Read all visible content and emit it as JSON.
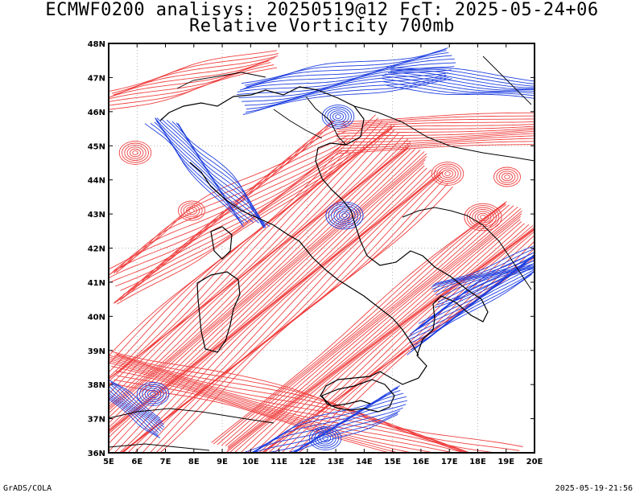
{
  "header": {
    "title_line1": "ECMWF0200 analisys: 20250519@12 FcT: 2025-05-24+06",
    "title_line2": "Relative Vorticity 700mb"
  },
  "map": {
    "lon_labels": [
      "5E",
      "6E",
      "7E",
      "8E",
      "9E",
      "10E",
      "11E",
      "12E",
      "13E",
      "14E",
      "15E",
      "16E",
      "17E",
      "18E",
      "19E",
      "20E"
    ],
    "lat_labels": [
      "48N",
      "47N",
      "46N",
      "45N",
      "44N",
      "43N",
      "42N",
      "41N",
      "40N",
      "39N",
      "38N",
      "37N",
      "36N"
    ],
    "lon_range": [
      5,
      20
    ],
    "lat_range": [
      36,
      48
    ],
    "positive_color": "#f04040",
    "negative_color": "#2040e0",
    "coast_color": "#000000",
    "grid_color": "#999999"
  },
  "footer": {
    "left": "GrADS/COLA",
    "right": "2025-05-19-21:56"
  }
}
